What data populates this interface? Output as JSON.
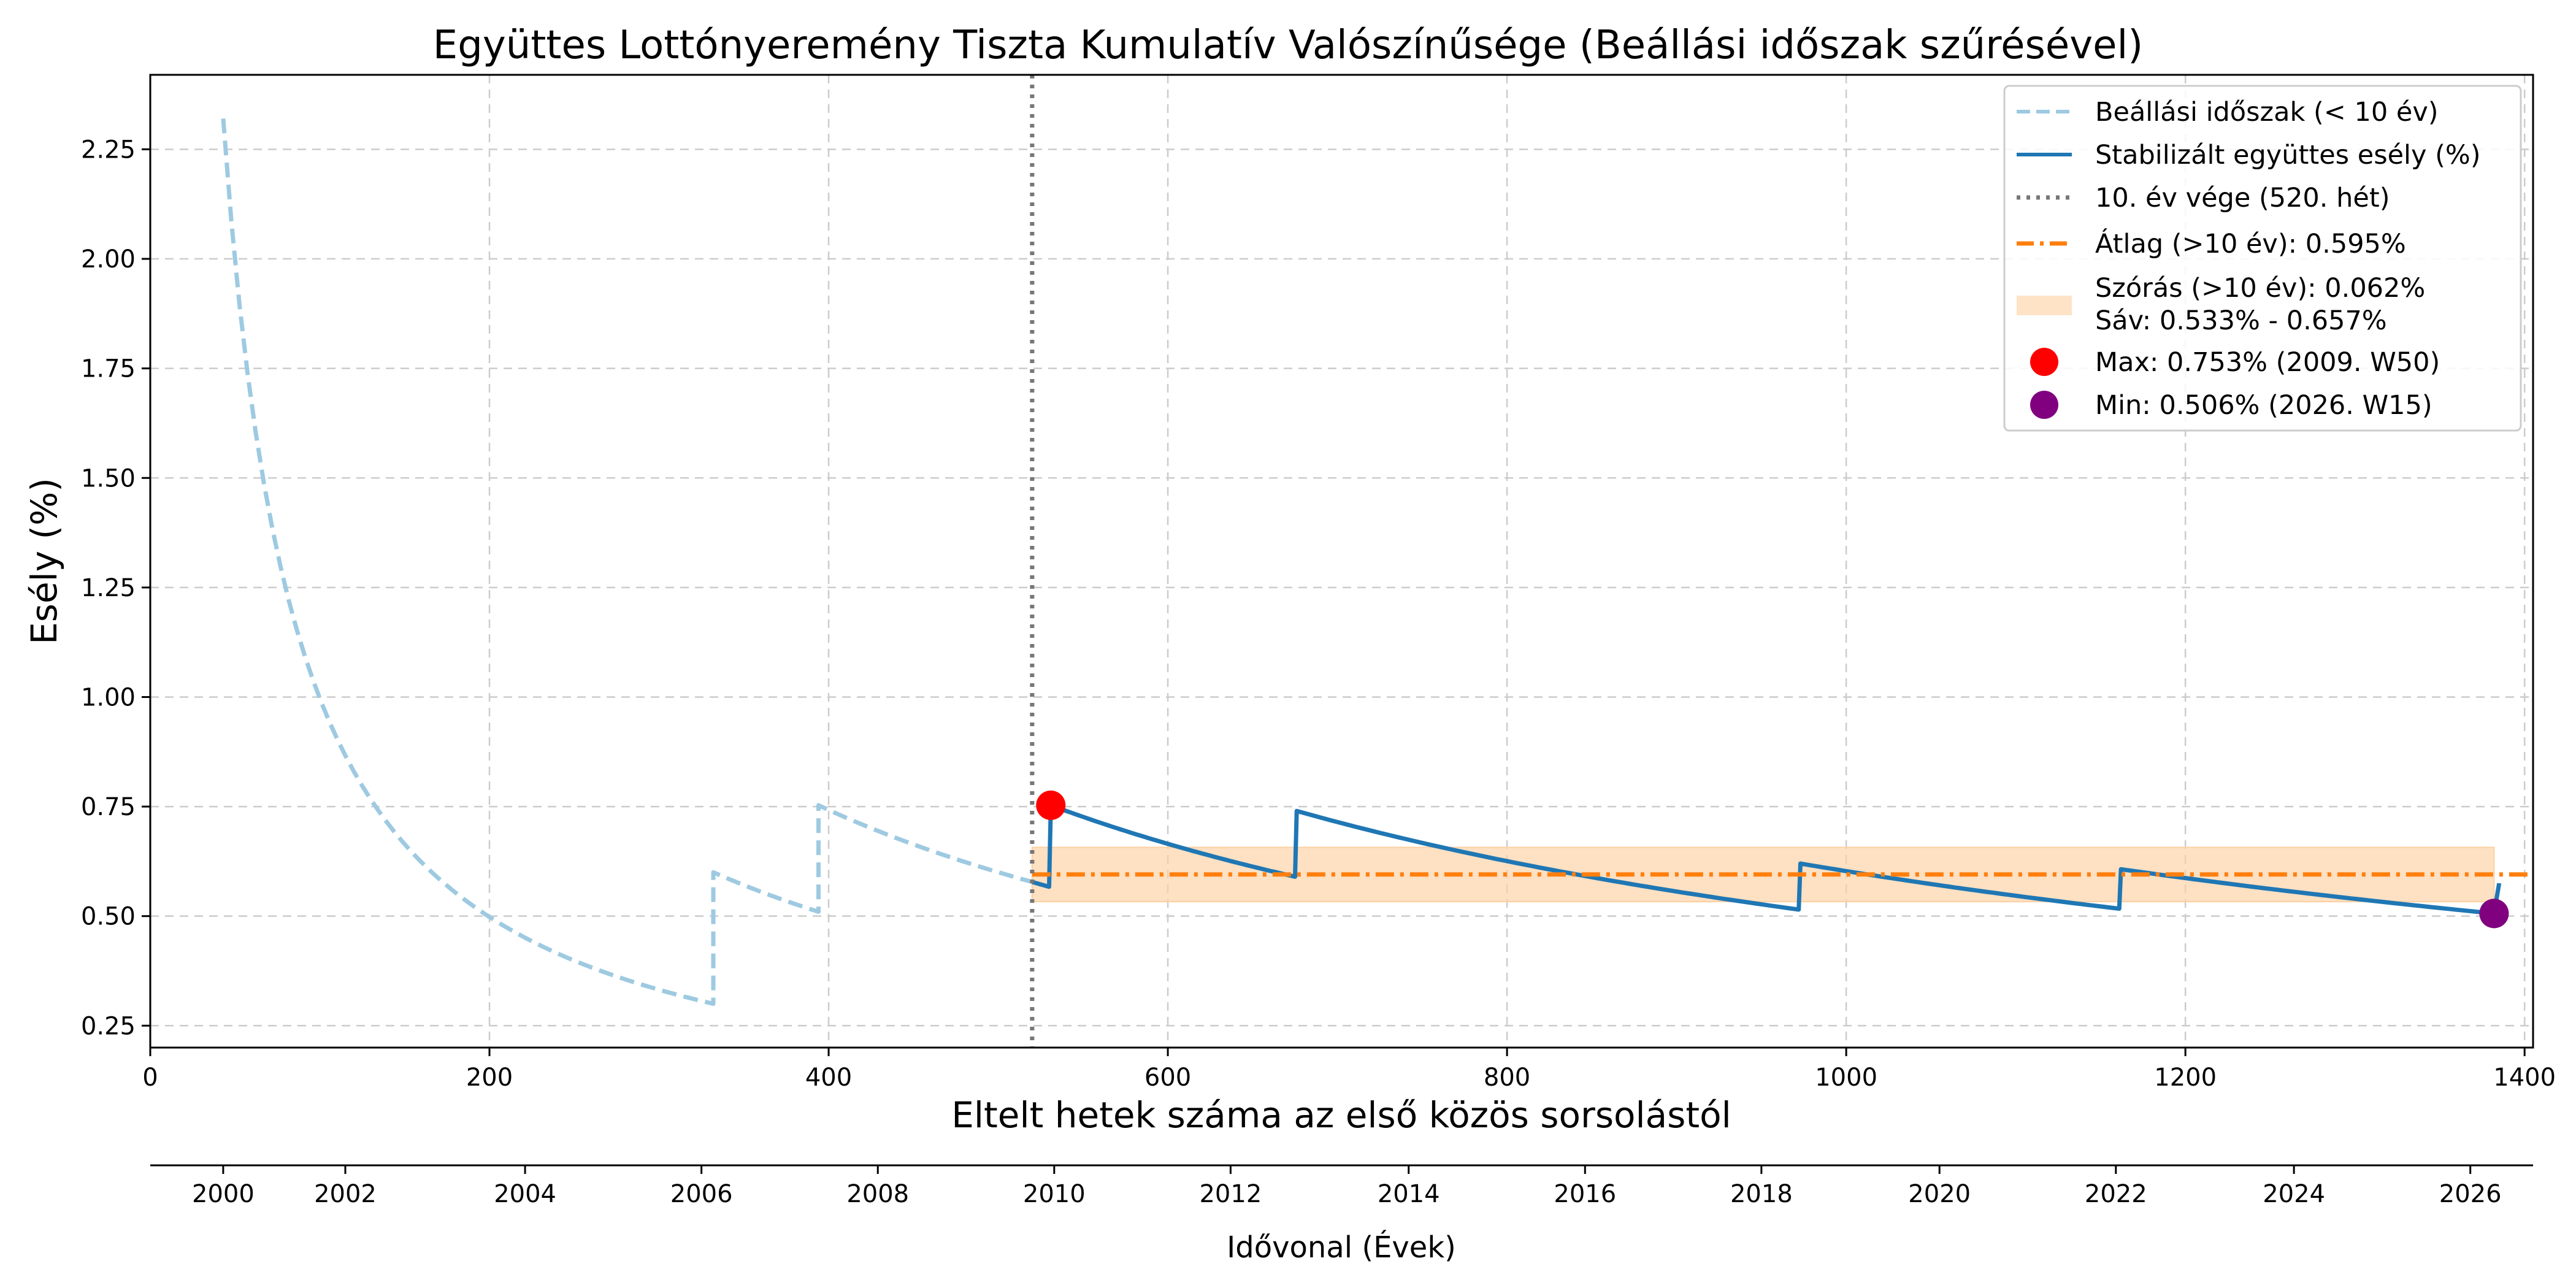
{
  "colors": {
    "settling": "#9ecae1",
    "stable": "#1f77b4",
    "mean": "#ff7f0e",
    "band": "#fdd0a2",
    "max": "#ff0000",
    "min": "#800080",
    "vline": "#777777",
    "grid": "#cccccc"
  },
  "chart_data": {
    "type": "line",
    "title": "Együttes Lottónyeremény Tiszta Kumulatív Valószínűsége (Beállási időszak szűrésével)",
    "xlabel": "Eltelt hetek száma az első közös sorsolástól",
    "ylabel": "Esély (%)",
    "x2label": "Idővonal (Évek)",
    "xlim": [
      0,
      1405
    ],
    "ylim": [
      0.2,
      2.42
    ],
    "x_ticks": [
      0,
      200,
      400,
      600,
      800,
      1000,
      1200,
      1400
    ],
    "x_tick_labels": [
      "0",
      "200",
      "400",
      "600",
      "800",
      "1000",
      "1200",
      "1400"
    ],
    "y_ticks": [
      0.25,
      0.5,
      0.75,
      1.0,
      1.25,
      1.5,
      1.75,
      2.0,
      2.25
    ],
    "y_tick_labels": [
      "0.25",
      "0.50",
      "0.75",
      "1.00",
      "1.25",
      "1.50",
      "1.75",
      "2.00",
      "2.25"
    ],
    "year_ticks": [
      {
        "label": "2000",
        "week": 43
      },
      {
        "label": "2002",
        "week": 115
      },
      {
        "label": "2004",
        "week": 221
      },
      {
        "label": "2006",
        "week": 325
      },
      {
        "label": "2008",
        "week": 429
      },
      {
        "label": "2010",
        "week": 533
      },
      {
        "label": "2012",
        "week": 637
      },
      {
        "label": "2014",
        "week": 742
      },
      {
        "label": "2016",
        "week": 846
      },
      {
        "label": "2018",
        "week": 950
      },
      {
        "label": "2020",
        "week": 1055
      },
      {
        "label": "2022",
        "week": 1159
      },
      {
        "label": "2024",
        "week": 1264
      },
      {
        "label": "2026",
        "week": 1368
      }
    ],
    "grid": true,
    "legend_position": "top-right",
    "settling_series": {
      "name": "Beállási időszak (< 10 év)",
      "style": "dashed",
      "segments": [
        {
          "x_start": 43,
          "x_end": 332,
          "y_start": 2.32,
          "y_end": 0.3,
          "decay": "hyperbolic"
        },
        {
          "x_start": 332,
          "x_end": 394,
          "y_start": 0.6,
          "y_end": 0.51,
          "decay": "hyperbolic"
        },
        {
          "x_start": 394,
          "x_end": 520,
          "y_start": 0.753,
          "y_end": 0.578,
          "decay": "hyperbolic"
        }
      ],
      "jumps": [
        {
          "x": 332,
          "from": 0.3,
          "to": 0.6
        },
        {
          "x": 394,
          "from": 0.51,
          "to": 0.753
        }
      ]
    },
    "stable_series": {
      "name": "Stabilizált együttes esély (%)",
      "style": "solid",
      "segments": [
        {
          "x_start": 520,
          "x_end": 530,
          "y_start": 0.578,
          "y_end": 0.567,
          "decay": "hyperbolic"
        },
        {
          "x_start": 531,
          "x_end": 675,
          "y_start": 0.753,
          "y_end": 0.59,
          "decay": "hyperbolic"
        },
        {
          "x_start": 676,
          "x_end": 972,
          "y_start": 0.74,
          "y_end": 0.515,
          "decay": "hyperbolic"
        },
        {
          "x_start": 973,
          "x_end": 1161,
          "y_start": 0.62,
          "y_end": 0.517,
          "decay": "hyperbolic"
        },
        {
          "x_start": 1162,
          "x_end": 1382,
          "y_start": 0.607,
          "y_end": 0.506,
          "decay": "hyperbolic"
        },
        {
          "x_start": 1382,
          "x_end": 1385,
          "y_start": 0.506,
          "y_end": 0.575,
          "decay": "linear"
        }
      ],
      "jumps": [
        {
          "x": 531,
          "from": 0.567,
          "to": 0.753
        },
        {
          "x": 676,
          "from": 0.59,
          "to": 0.74
        },
        {
          "x": 973,
          "from": 0.515,
          "to": 0.62
        },
        {
          "x": 1162,
          "from": 0.517,
          "to": 0.607
        }
      ]
    },
    "vline": {
      "x": 520,
      "label": "10. év vége (520. hét)"
    },
    "mean": {
      "value": 0.595,
      "x_start": 520,
      "label": "Átlag (>10 év): 0.595%"
    },
    "band": {
      "low": 0.533,
      "high": 0.657,
      "x_start": 520,
      "x_end": 1382,
      "label_line1": "Szórás (>10 év): 0.062%",
      "label_line2": "Sáv: 0.533% - 0.657%"
    },
    "max_point": {
      "x": 531,
      "y": 0.753,
      "label": "Max: 0.753% (2009. W50)"
    },
    "min_point": {
      "x": 1382,
      "y": 0.506,
      "label": "Min: 0.506% (2026. W15)"
    }
  }
}
